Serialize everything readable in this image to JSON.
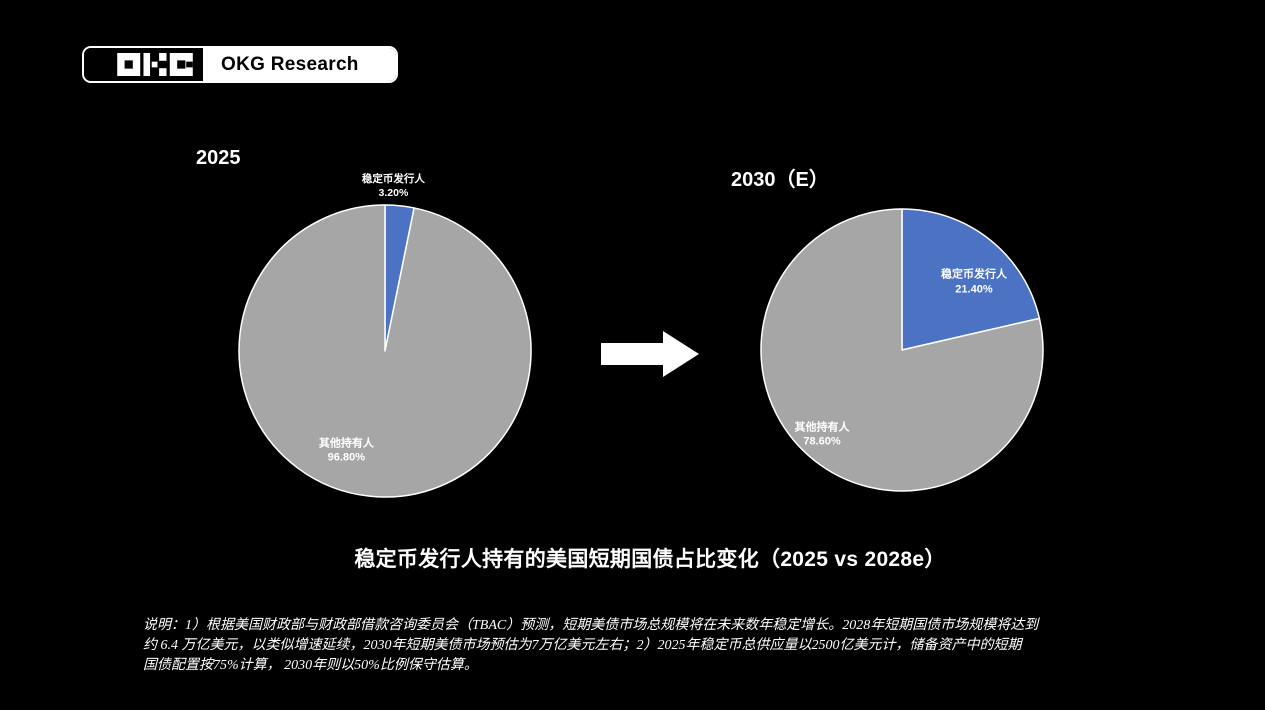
{
  "logo": {
    "glyph": "OKG",
    "brand": "OKG Research"
  },
  "icons": {
    "transition": "arrow-right-icon"
  },
  "colors": {
    "background": "#000000",
    "stablecoin_blue": "#4B72C3",
    "others_gray": "#A6A6A6",
    "text": "#FFFFFF"
  },
  "main_title": "稳定币发行人持有的美国短期国债占比变化（2025 vs 2028e）",
  "footnote": {
    "lines": [
      "说明：1）根据美国财政部与财政部借款咨询委员会（TBAC）预测，短期美债市场总规模将在未来数年稳定增长。2028年短期国债市场规模将达到",
      "约 6.4 万亿美元，以类似增速延续，2030年短期美债市场预估为7万亿美元左右；2）2025年稳定币总供应量以2500亿美元计，储备资产中的短期",
      "国债配置按75%计算， 2030年则以50%比例保守估算。"
    ]
  },
  "chart_data": [
    {
      "type": "pie",
      "title": "2025",
      "labels": [
        "稳定币发行人",
        "其他持有人"
      ],
      "values": [
        3.2,
        96.8
      ],
      "value_labels": [
        "3.20%",
        "96.80%"
      ],
      "colors": [
        "#4B72C3",
        "#A6A6A6"
      ],
      "start_angle_deg": 0,
      "direction": "clockwise",
      "label_placement": [
        "outside",
        "inside"
      ],
      "slice_border_color": "#FFFFFF"
    },
    {
      "type": "pie",
      "title": "2030（E）",
      "labels": [
        "稳定币发行人",
        "其他持有人"
      ],
      "values": [
        21.4,
        78.6
      ],
      "value_labels": [
        "21.40%",
        "78.60%"
      ],
      "colors": [
        "#4B72C3",
        "#A6A6A6"
      ],
      "start_angle_deg": 0,
      "direction": "clockwise",
      "label_placement": [
        "inside",
        "inside"
      ],
      "slice_border_color": "#FFFFFF"
    }
  ]
}
